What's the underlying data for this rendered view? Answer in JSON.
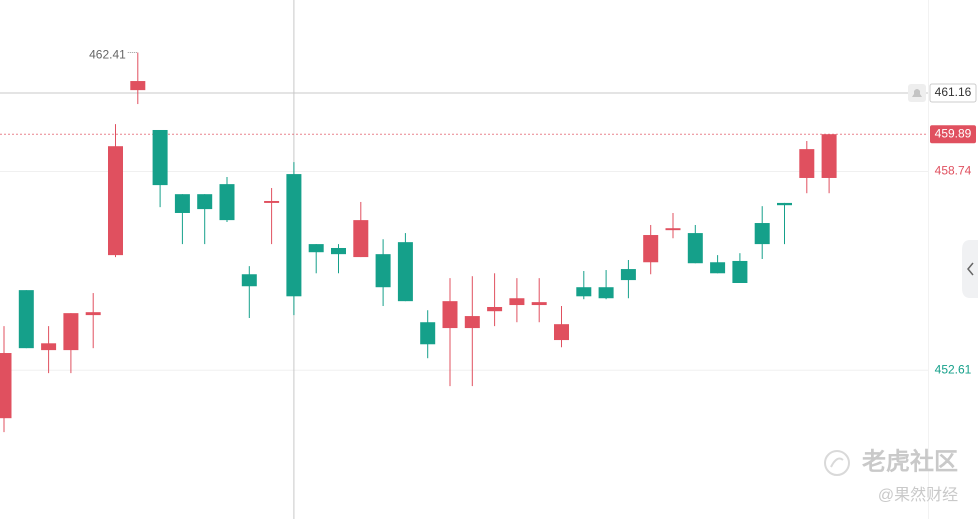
{
  "chart_data": {
    "type": "candlestick",
    "up_color": "#e0505f",
    "down_color": "#15a08a",
    "open": [
      451.13,
      455.08,
      453.23,
      453.23,
      454.31,
      456.16,
      461.25,
      460.02,
      458.04,
      458.04,
      458.35,
      455.57,
      457.77,
      458.66,
      456.5,
      456.38,
      456.1,
      456.19,
      456.56,
      454.09,
      453.91,
      453.91,
      454.43,
      454.62,
      454.62,
      453.54,
      455.17,
      455.17,
      455.73,
      455.94,
      456.93,
      456.84,
      455.94,
      455.98,
      457.15,
      457.77,
      458.54,
      458.54
    ],
    "high": [
      453.97,
      455.08,
      453.97,
      454.37,
      454.99,
      460.2,
      462.41,
      460.02,
      458.04,
      458.04,
      458.57,
      455.82,
      458.23,
      459.03,
      456.5,
      456.5,
      457.8,
      456.65,
      456.84,
      454.46,
      455.45,
      455.51,
      455.6,
      455.45,
      455.45,
      454.59,
      455.67,
      455.7,
      456.01,
      457.09,
      457.46,
      457.09,
      456.16,
      456.22,
      457.67,
      457.77,
      459.68,
      459.89
    ],
    "low": [
      450.7,
      453.29,
      452.52,
      452.52,
      453.29,
      456.1,
      460.82,
      457.64,
      456.5,
      456.5,
      457.18,
      454.22,
      456.5,
      454.31,
      455.6,
      455.6,
      456.1,
      454.59,
      454.74,
      452.98,
      452.12,
      452.12,
      453.97,
      454.09,
      454.09,
      453.32,
      454.8,
      454.8,
      454.83,
      455.57,
      456.68,
      455.91,
      455.6,
      455.3,
      456.04,
      456.5,
      458.07,
      458.07
    ],
    "close": [
      453.14,
      453.29,
      453.44,
      454.37,
      454.4,
      459.52,
      461.53,
      458.32,
      457.46,
      457.58,
      457.24,
      455.2,
      457.83,
      454.89,
      456.25,
      456.19,
      457.24,
      455.17,
      454.74,
      453.41,
      454.74,
      454.28,
      454.56,
      454.83,
      454.71,
      454.03,
      454.89,
      454.83,
      455.39,
      456.78,
      456.99,
      455.91,
      455.6,
      455.3,
      456.5,
      457.7,
      459.43,
      459.89
    ],
    "ylim": [
      448.02,
      464.03
    ],
    "yticks": [
      458.74,
      452.61
    ],
    "ytick_colors": [
      "#e0505f",
      "#15a08a"
    ],
    "grid": true,
    "max_label": 462.41,
    "crosshair": {
      "index": 13,
      "value": 461.16
    },
    "last_price": 459.89,
    "watermark": {
      "brand": "老虎社区",
      "author": "@果然财经"
    }
  }
}
